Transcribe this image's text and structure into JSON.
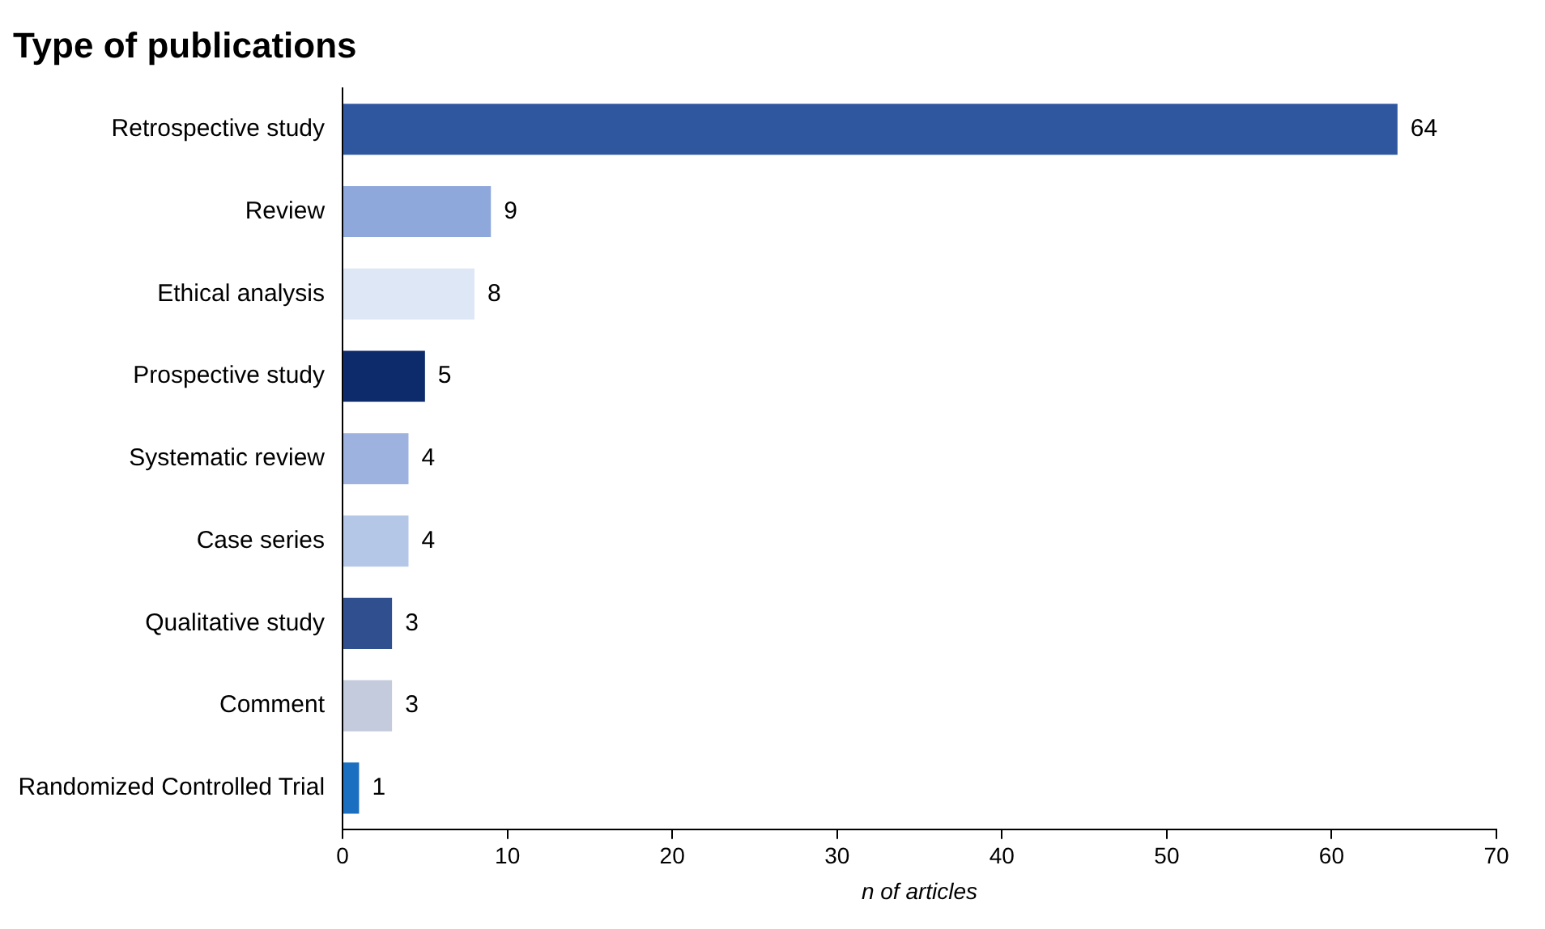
{
  "chart_data": {
    "type": "bar",
    "orientation": "horizontal",
    "title": "Type of publications",
    "xlabel": "n of articles",
    "categories": [
      "Retrospective study",
      "Review",
      "Ethical analysis",
      "Prospective study",
      "Systematic review",
      "Case series",
      "Qualitative study",
      "Comment",
      "Randomized Controlled Trial"
    ],
    "values": [
      64,
      9,
      8,
      5,
      4,
      4,
      3,
      3,
      1
    ],
    "colors": [
      "#2f57a0",
      "#8fa8dc",
      "#dde7f6",
      "#0d2a6b",
      "#9db2df",
      "#b4c7e7",
      "#2f4f8f",
      "#c3cbdc",
      "#1a6fc0"
    ],
    "xlim": [
      0,
      70
    ],
    "xticks": [
      0,
      10,
      20,
      30,
      40,
      50,
      60,
      70
    ],
    "grid": false,
    "data_labels": true,
    "legend": false
  }
}
